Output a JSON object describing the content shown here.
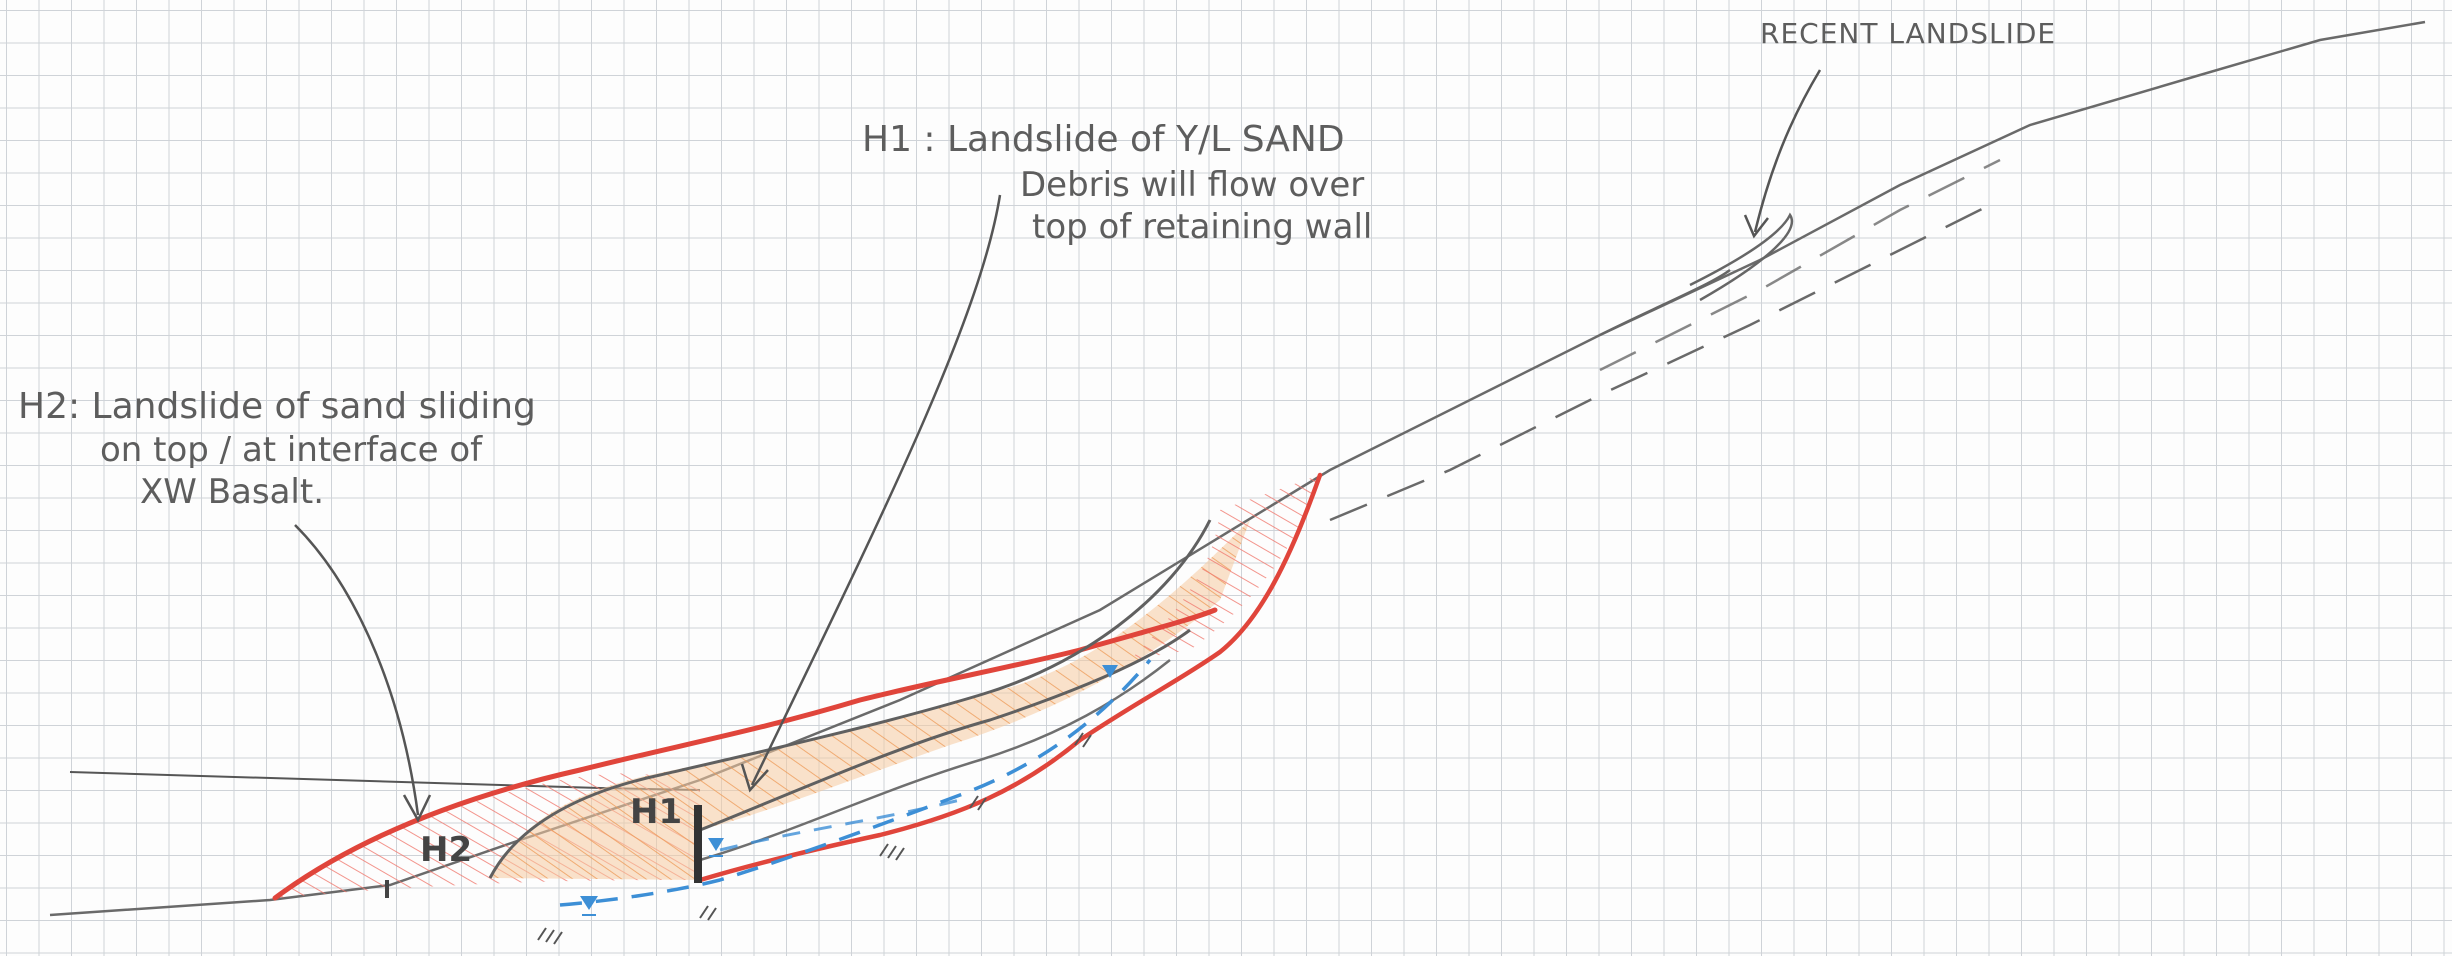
{
  "annotations": {
    "recent_landslide": "RECENT LANDSLIDE",
    "h1_line1": "H1 : Landslide of Y/L SAND",
    "h1_line2": "Debris will flow over",
    "h1_line3": "top of retaining wall",
    "h2_line1": "H2: Landslide of sand sliding",
    "h2_line2": "on top / at interface of",
    "h2_line3": "XW Basalt."
  },
  "labels": {
    "h1": "H1",
    "h2": "H2"
  },
  "colors": {
    "grid": "#cfd3d8",
    "pencil": "#6a6a6a",
    "red_outline": "#e0453b",
    "orange_fill": "#f2b98a",
    "orange_hatch": "#ee9a55",
    "red_hatch": "#f07a70",
    "water_blue": "#3d8fd6"
  },
  "icons": {
    "water_table": "water-table-symbol"
  }
}
